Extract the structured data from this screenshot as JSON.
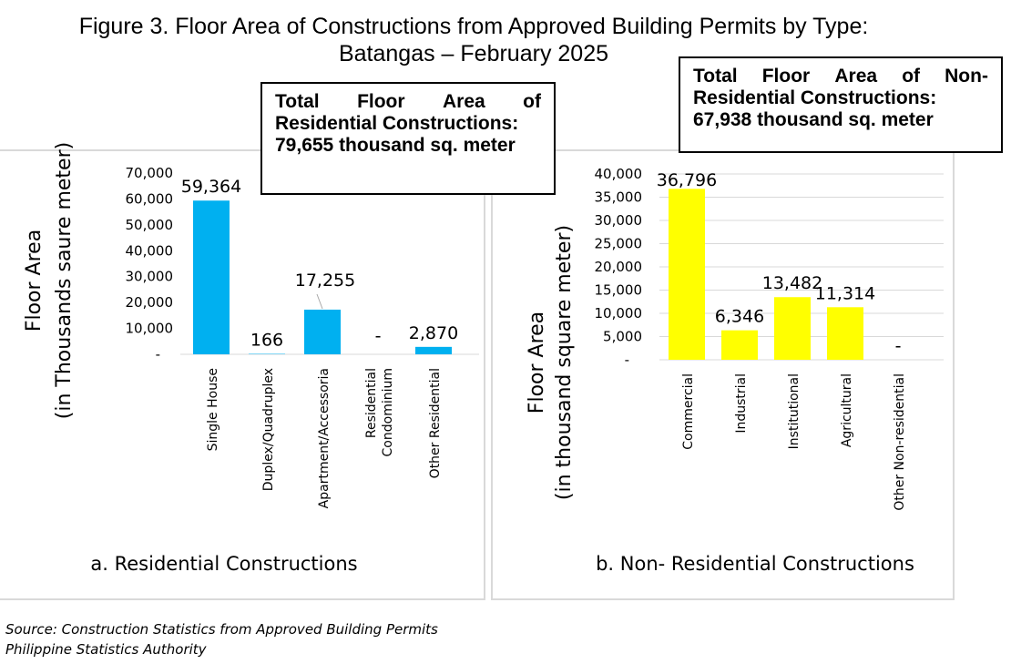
{
  "figure": {
    "title_line1": "Figure 3.  Floor Area of Constructions from Approved Building Permits by Type:",
    "title_line2": "Batangas – February 2025"
  },
  "callouts": {
    "residential": {
      "line1_words": [
        "Total",
        "Floor",
        "Area",
        "of"
      ],
      "line2": "Residential Constructions:",
      "line3": "79,655 thousand sq. meter"
    },
    "non_residential": {
      "line1_words": [
        "Total",
        "Floor",
        "Area",
        "of",
        "Non-"
      ],
      "line2": "Residential Constructions:",
      "line3": "67,938 thousand sq. meter"
    }
  },
  "source": {
    "line1": "Source: Construction Statistics from Approved Building Permits",
    "line2": "Philippine Statistics Authority"
  },
  "chart_data": [
    {
      "type": "bar",
      "subtitle": "a. Residential Constructions",
      "ylabel_line1": "Floor Area",
      "ylabel_line2": "(in Thousands saure meter)",
      "categories": [
        [
          "Single House"
        ],
        [
          "Duplex/Quadruplex"
        ],
        [
          "Apartment/Accessoria"
        ],
        [
          "Residential",
          "Condominium"
        ],
        [
          "Other Residential"
        ]
      ],
      "values": [
        59364,
        166,
        17255,
        0,
        2870
      ],
      "data_labels": [
        "59,364",
        "166",
        "17,255",
        "-",
        "2,870"
      ],
      "ylim": [
        0,
        70000
      ],
      "yticks": [
        0,
        10000,
        20000,
        30000,
        40000,
        50000,
        60000,
        70000
      ],
      "ytick_labels": [
        "-",
        "10,000",
        "20,000",
        "30,000",
        "40,000",
        "50,000",
        "60,000",
        "70,000"
      ],
      "grid": false,
      "color": "#00b0f0"
    },
    {
      "type": "bar",
      "subtitle": "b. Non- Residential Constructions",
      "ylabel_line1": "Floor Area",
      "ylabel_line2": "(in thousand square meter)",
      "categories": [
        [
          "Commercial"
        ],
        [
          "Industrial"
        ],
        [
          "Institutional"
        ],
        [
          "Agricultural"
        ],
        [
          "Other Non-residential"
        ]
      ],
      "values": [
        36796,
        6346,
        13482,
        11314,
        0
      ],
      "data_labels": [
        "36,796",
        "6,346",
        "13,482",
        "11,314",
        "-"
      ],
      "ylim": [
        0,
        40000
      ],
      "yticks": [
        0,
        5000,
        10000,
        15000,
        20000,
        25000,
        30000,
        35000,
        40000
      ],
      "ytick_labels": [
        "-",
        "5,000",
        "10,000",
        "15,000",
        "20,000",
        "25,000",
        "30,000",
        "35,000",
        "40,000"
      ],
      "grid": true,
      "color": "#ffff00"
    }
  ]
}
